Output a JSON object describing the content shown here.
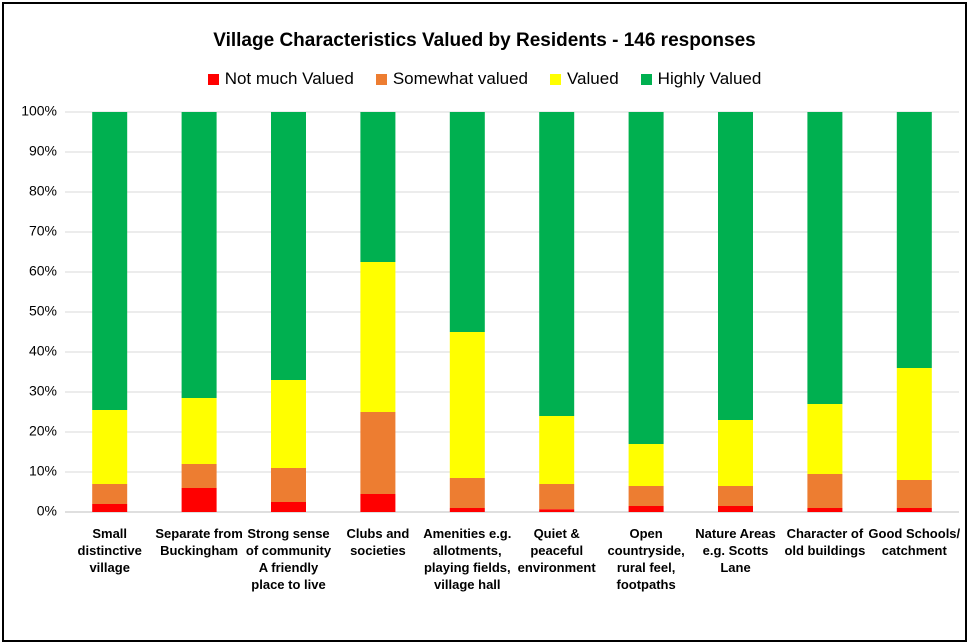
{
  "chart_data": {
    "type": "stacked_bar_percent",
    "title": "Village Characteristics Valued by Residents - 146 responses",
    "categories": [
      "Small distinctive village",
      "Separate from Buckingham",
      "Strong sense of community A friendly place to live",
      "Clubs and societies",
      "Amenities e.g. allotments, playing fields, village hall",
      "Quiet & peaceful environment",
      "Open countryside, rural feel, footpaths",
      "Nature Areas e.g. Scotts Lane",
      "Character of old buildings",
      "Good Schools/ catchment"
    ],
    "series": [
      {
        "name": "Not much Valued",
        "color": "#ff0000",
        "values": [
          2,
          6,
          2.5,
          4.5,
          1,
          0.7,
          1.5,
          1.5,
          1,
          1
        ]
      },
      {
        "name": "Somewhat valued",
        "color": "#ed7d31",
        "values": [
          5,
          6,
          8.5,
          20.5,
          7.5,
          6.3,
          5,
          5,
          8.5,
          7
        ]
      },
      {
        "name": "Valued",
        "color": "#ffff00",
        "values": [
          18.5,
          16.5,
          22,
          37.5,
          36.5,
          17,
          10.5,
          16.5,
          17.5,
          28
        ]
      },
      {
        "name": "Highly Valued",
        "color": "#00b050",
        "values": [
          74.5,
          71.5,
          67,
          37.5,
          55,
          76,
          83,
          77,
          73,
          64
        ]
      }
    ],
    "ylim": [
      0,
      100
    ],
    "yticks": [
      {
        "value": 0,
        "label": "0%"
      },
      {
        "value": 10,
        "label": "10%"
      },
      {
        "value": 20,
        "label": "20%"
      },
      {
        "value": 30,
        "label": "30%"
      },
      {
        "value": 40,
        "label": "40%"
      },
      {
        "value": 50,
        "label": "50%"
      },
      {
        "value": 60,
        "label": "60%"
      },
      {
        "value": 70,
        "label": "70%"
      },
      {
        "value": 80,
        "label": "80%"
      },
      {
        "value": 90,
        "label": "90%"
      },
      {
        "value": 100,
        "label": "100%"
      }
    ],
    "grid": true
  }
}
